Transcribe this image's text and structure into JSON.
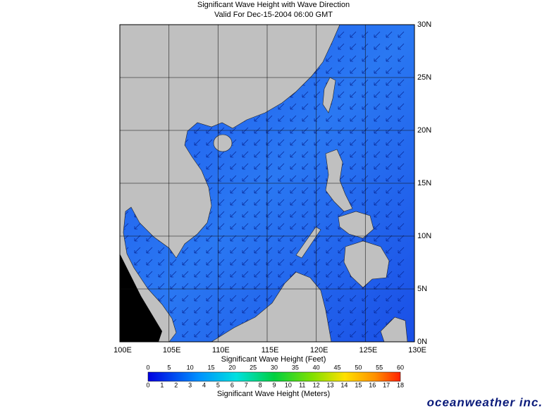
{
  "header": {
    "title": "Significant Wave Height with Wave Direction",
    "subtitle": "Valid For Dec-15-2004 06:00 GMT"
  },
  "map": {
    "lon_labels": [
      "100E",
      "105E",
      "110E",
      "115E",
      "120E",
      "125E",
      "130E"
    ],
    "lat_labels": [
      "30N",
      "25N",
      "20N",
      "15N",
      "10N",
      "5N",
      "0N"
    ]
  },
  "legend": {
    "feet_ticks": [
      0,
      5,
      10,
      15,
      20,
      25,
      30,
      35,
      40,
      45,
      50,
      55,
      60
    ],
    "feet_caption": "Significant Wave Height (Feet)",
    "meter_ticks": [
      0,
      1,
      2,
      3,
      4,
      5,
      6,
      7,
      8,
      9,
      10,
      11,
      12,
      13,
      14,
      15,
      16,
      17,
      18
    ],
    "meter_caption": "Significant Wave Height (Meters)"
  },
  "brand": "oceanweather inc."
}
